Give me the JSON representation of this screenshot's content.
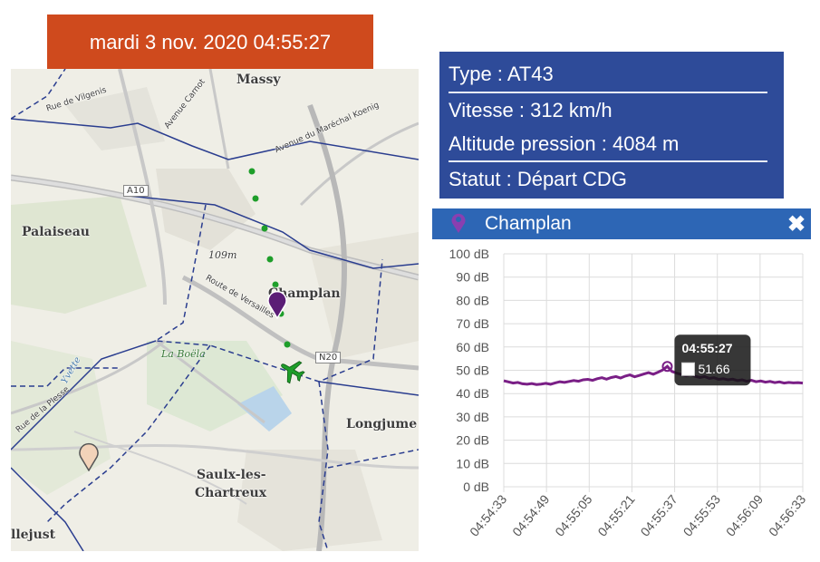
{
  "header": {
    "datetime": "mardi 3 nov. 2020 04:55:27"
  },
  "info": {
    "type": "Type : AT43",
    "speed": "Vitesse : 312 km/h",
    "altitude": "Altitude pression : 4084 m",
    "status": "Statut : Départ CDG"
  },
  "map": {
    "labels": {
      "massy": "Massy",
      "palaiseau": "Palaiseau",
      "champlan": "Champlan",
      "longjumeau": "Longjume",
      "saulx1": "Saulx-les-",
      "saulx2": "Chartreux",
      "ballainvilliers": "llejust",
      "road_a10": "A10",
      "road_n20": "N20",
      "elev": "109m",
      "avenue_carnot": "Avenue Carnot",
      "avenue_marechal": "Avenue du Maréchal Koenig",
      "route_versailles": "Route de Versailles",
      "rue_vilgenis": "Rue de Vilgenis",
      "la_boela": "La Boëla",
      "yvette": "Yvette",
      "rue_plesse": "Rue de la Plesse"
    },
    "icons": {
      "aircraft": "airplane-icon",
      "station": "map-pin-icon"
    },
    "colors": {
      "track": "#1e9e2a",
      "station_selected": "#5b1d76",
      "station_other": "#f2d3b9",
      "aircraft": "#1e9e2a",
      "boundary": "#2a3d8f"
    }
  },
  "panel": {
    "title": "Champlan",
    "close_label": "✖",
    "icon": "map-pin-icon",
    "color": "#2d66b5"
  },
  "chart_data": {
    "type": "line",
    "series": [
      {
        "values_db": [
          45.5,
          45.0,
          44.5,
          44.8,
          44.2,
          44.0,
          44.3,
          43.9,
          44.1,
          44.4,
          44.0,
          44.6,
          45.1,
          44.8,
          45.2,
          45.6,
          45.3,
          45.9,
          46.1,
          45.7,
          46.4,
          46.8,
          46.2,
          46.9,
          47.3,
          46.7,
          47.5,
          48.0,
          47.2,
          47.8,
          48.4,
          49.0,
          48.3,
          49.2,
          50.1,
          51.66,
          49.5,
          48.8,
          48.2,
          47.6,
          48.1,
          47.4,
          46.9,
          47.3,
          46.5,
          46.8,
          46.1,
          46.4,
          45.9,
          46.2,
          45.6,
          45.9,
          45.3,
          45.7,
          45.1,
          45.4,
          44.9,
          45.2,
          44.7,
          45.0,
          44.5,
          44.8,
          44.6,
          44.7,
          44.5
        ]
      }
    ],
    "x_labels": [
      "04:54:33",
      "04:54:49",
      "04:55:05",
      "04:55:21",
      "04:55:37",
      "04:55:53",
      "04:56:09",
      "04:56:33"
    ],
    "y_labels": [
      "100 dB",
      "90 dB",
      "80 dB",
      "70 dB",
      "60 dB",
      "50 dB",
      "40 dB",
      "30 dB",
      "20 dB",
      "10 dB",
      "0 dB"
    ],
    "ylim": [
      0,
      100
    ],
    "grid": true,
    "line_color": "#7a1f86",
    "tooltip": {
      "time": "04:55:27",
      "value": "51.66"
    }
  }
}
